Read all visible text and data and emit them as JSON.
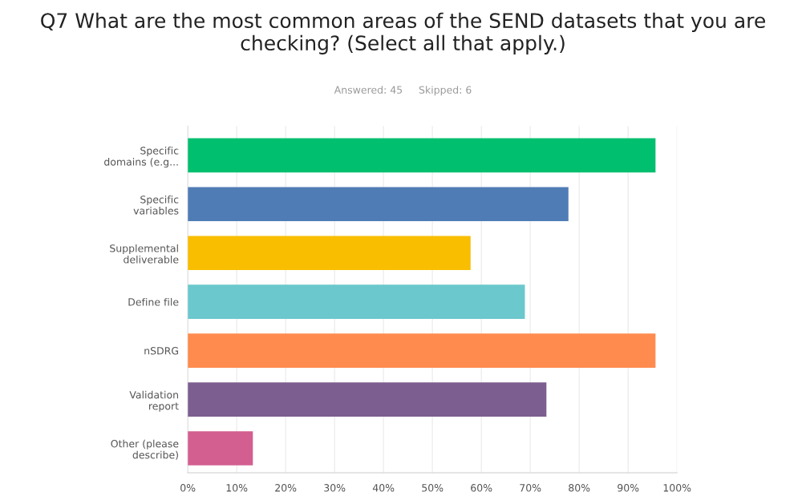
{
  "chart_data": {
    "type": "bar",
    "orientation": "horizontal",
    "title": "Q7 What are the most common areas of the SEND datasets that you are checking? (Select all that apply.)",
    "subtitle": "Answered: 45     Skipped: 6",
    "categories": [
      "Specific\ndomains (e.g...",
      "Specific\nvariables",
      "Supplemental\ndeliverable",
      "Define file",
      "nSDRG",
      "Validation\nreport",
      "Other (please\ndescribe)"
    ],
    "values": [
      95.6,
      77.8,
      57.8,
      68.9,
      95.6,
      73.3,
      13.3
    ],
    "colors": [
      "#00bf6f",
      "#507cb6",
      "#f9be00",
      "#6bc8cd",
      "#ff8b4f",
      "#7d5e90",
      "#d25f90"
    ],
    "xlim": [
      0,
      100
    ],
    "xticks": [
      {
        "value": 0,
        "label": "0%"
      },
      {
        "value": 10,
        "label": "10%"
      },
      {
        "value": 20,
        "label": "20%"
      },
      {
        "value": 30,
        "label": "30%"
      },
      {
        "value": 40,
        "label": "40%"
      },
      {
        "value": 50,
        "label": "50%"
      },
      {
        "value": 60,
        "label": "60%"
      },
      {
        "value": 70,
        "label": "70%"
      },
      {
        "value": 80,
        "label": "80%"
      },
      {
        "value": 90,
        "label": "90%"
      },
      {
        "value": 100,
        "label": "100%"
      }
    ],
    "grid": "x",
    "legend": false
  }
}
